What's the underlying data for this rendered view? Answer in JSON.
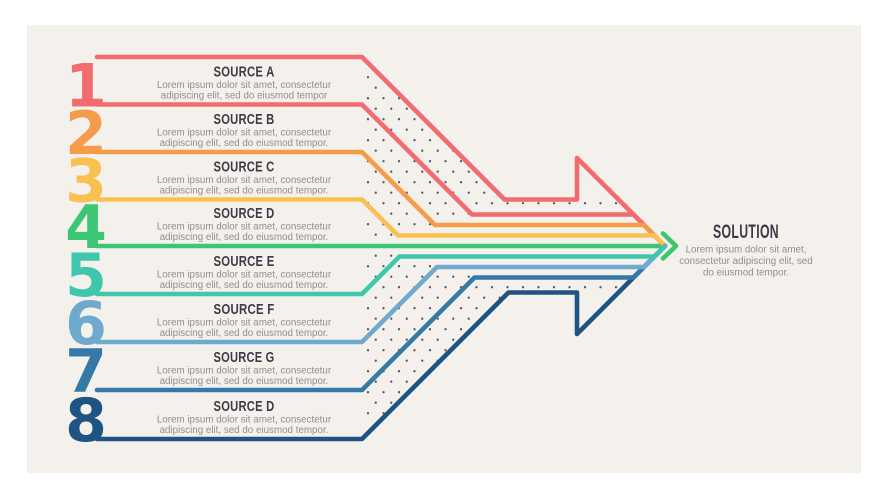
{
  "background": {
    "page": "#ffffff",
    "panel": "#f4f1ec"
  },
  "dot_color": "#3f3e49",
  "text_colors": {
    "title": "#3c3a45",
    "body": "#8f8d94"
  },
  "rows": [
    {
      "number": "1",
      "title": "SOURCE A",
      "color": "#f26b6e",
      "body": [
        "Lorem ipsum dolor sit amet, consectetur",
        "adipiscing elit, sed do eiusmod tempor"
      ]
    },
    {
      "number": "2",
      "title": "SOURCE B",
      "color": "#f59c4b",
      "body": [
        "Lorem ipsum dolor sit amet, consectetur",
        "adipiscing elit, sed do eiusmod tempor."
      ]
    },
    {
      "number": "3",
      "title": "SOURCE C",
      "color": "#f8c152",
      "body": [
        "Lorem ipsum dolor sit amet, consectetur",
        "adipiscing elit, sed do eiusmod tempor."
      ]
    },
    {
      "number": "4",
      "title": "SOURCE D",
      "color": "#3cc573",
      "body": [
        "Lorem ipsum dolor sit amet, consectetur",
        "adipiscing elit, sed do eiusmod tempor."
      ]
    },
    {
      "number": "5",
      "title": "SOURCE E",
      "color": "#3fc7ae",
      "body": [
        "Lorem ipsum dolor sit amet, consectetur",
        "adipiscing elit, sed do eiusmod tempor."
      ]
    },
    {
      "number": "6",
      "title": "SOURCE F",
      "color": "#6fa9ce",
      "body": [
        "Lorem ipsum dolor sit amet, consectetur",
        "adipiscing elit, sed do eiusmod tempor."
      ]
    },
    {
      "number": "7",
      "title": "SOURCE G",
      "color": "#3579a8",
      "body": [
        "Lorem ipsum dolor sit amet, consectetur",
        "adipiscing elit, sed do eiusmod tempor."
      ]
    },
    {
      "number": "8",
      "title": "SOURCE D",
      "color": "#1f5381",
      "body": [
        "Lorem ipsum dolor sit amet, consectetur",
        "adipiscing elit, sed do eiusmod tempor."
      ]
    }
  ],
  "solution": {
    "title": "SOLUTION",
    "body": [
      "Lorem ipsum dolor sit amet,",
      "consectetur adipiscing elit, sed",
      "do eiusmod tempor."
    ]
  }
}
